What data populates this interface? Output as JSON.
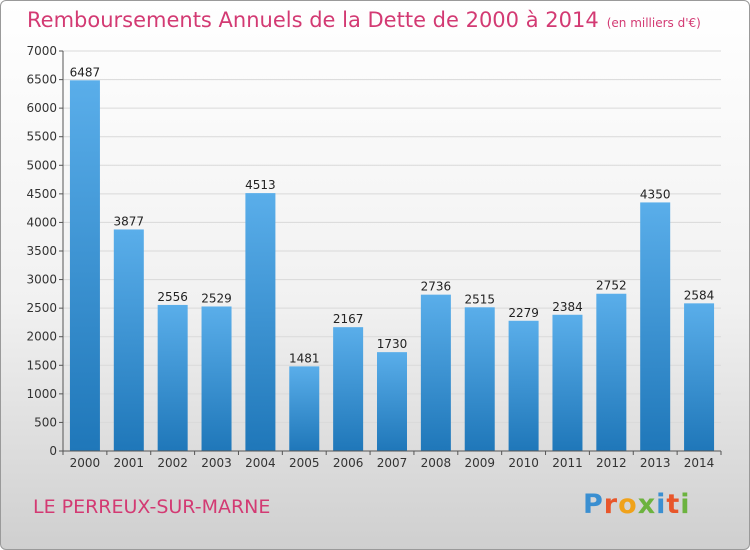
{
  "chart_data": {
    "type": "bar",
    "title": "Remboursements Annuels de la Dette de 2000 à 2014",
    "subtitle": "(en milliers d'€)",
    "categories": [
      "2000",
      "2001",
      "2002",
      "2003",
      "2004",
      "2005",
      "2006",
      "2007",
      "2008",
      "2009",
      "2010",
      "2011",
      "2012",
      "2013",
      "2014"
    ],
    "values": [
      6487,
      3877,
      2556,
      2529,
      4513,
      1481,
      2167,
      1730,
      2736,
      2515,
      2279,
      2384,
      2752,
      4350,
      2584
    ],
    "ylim": [
      0,
      7000
    ],
    "yticks": [
      0,
      500,
      1000,
      1500,
      2000,
      2500,
      3000,
      3500,
      4000,
      4500,
      5000,
      5500,
      6000,
      6500,
      7000
    ],
    "grid": true,
    "colors": {
      "bar_light": "#5aaeea",
      "bar_dark": "#1f77b9",
      "title": "#d33a73"
    }
  },
  "footer": {
    "city": "LE PERREUX-SUR-MARNE",
    "logo_letters": [
      {
        "ch": "P",
        "color": "#3a8fd1"
      },
      {
        "ch": "r",
        "color": "#e8562a"
      },
      {
        "ch": "o",
        "color": "#f0a21a"
      },
      {
        "ch": "x",
        "color": "#6cb33f"
      },
      {
        "ch": "i",
        "color": "#3a8fd1"
      },
      {
        "ch": "t",
        "color": "#e8562a"
      },
      {
        "ch": "i",
        "color": "#6cb33f"
      }
    ]
  }
}
